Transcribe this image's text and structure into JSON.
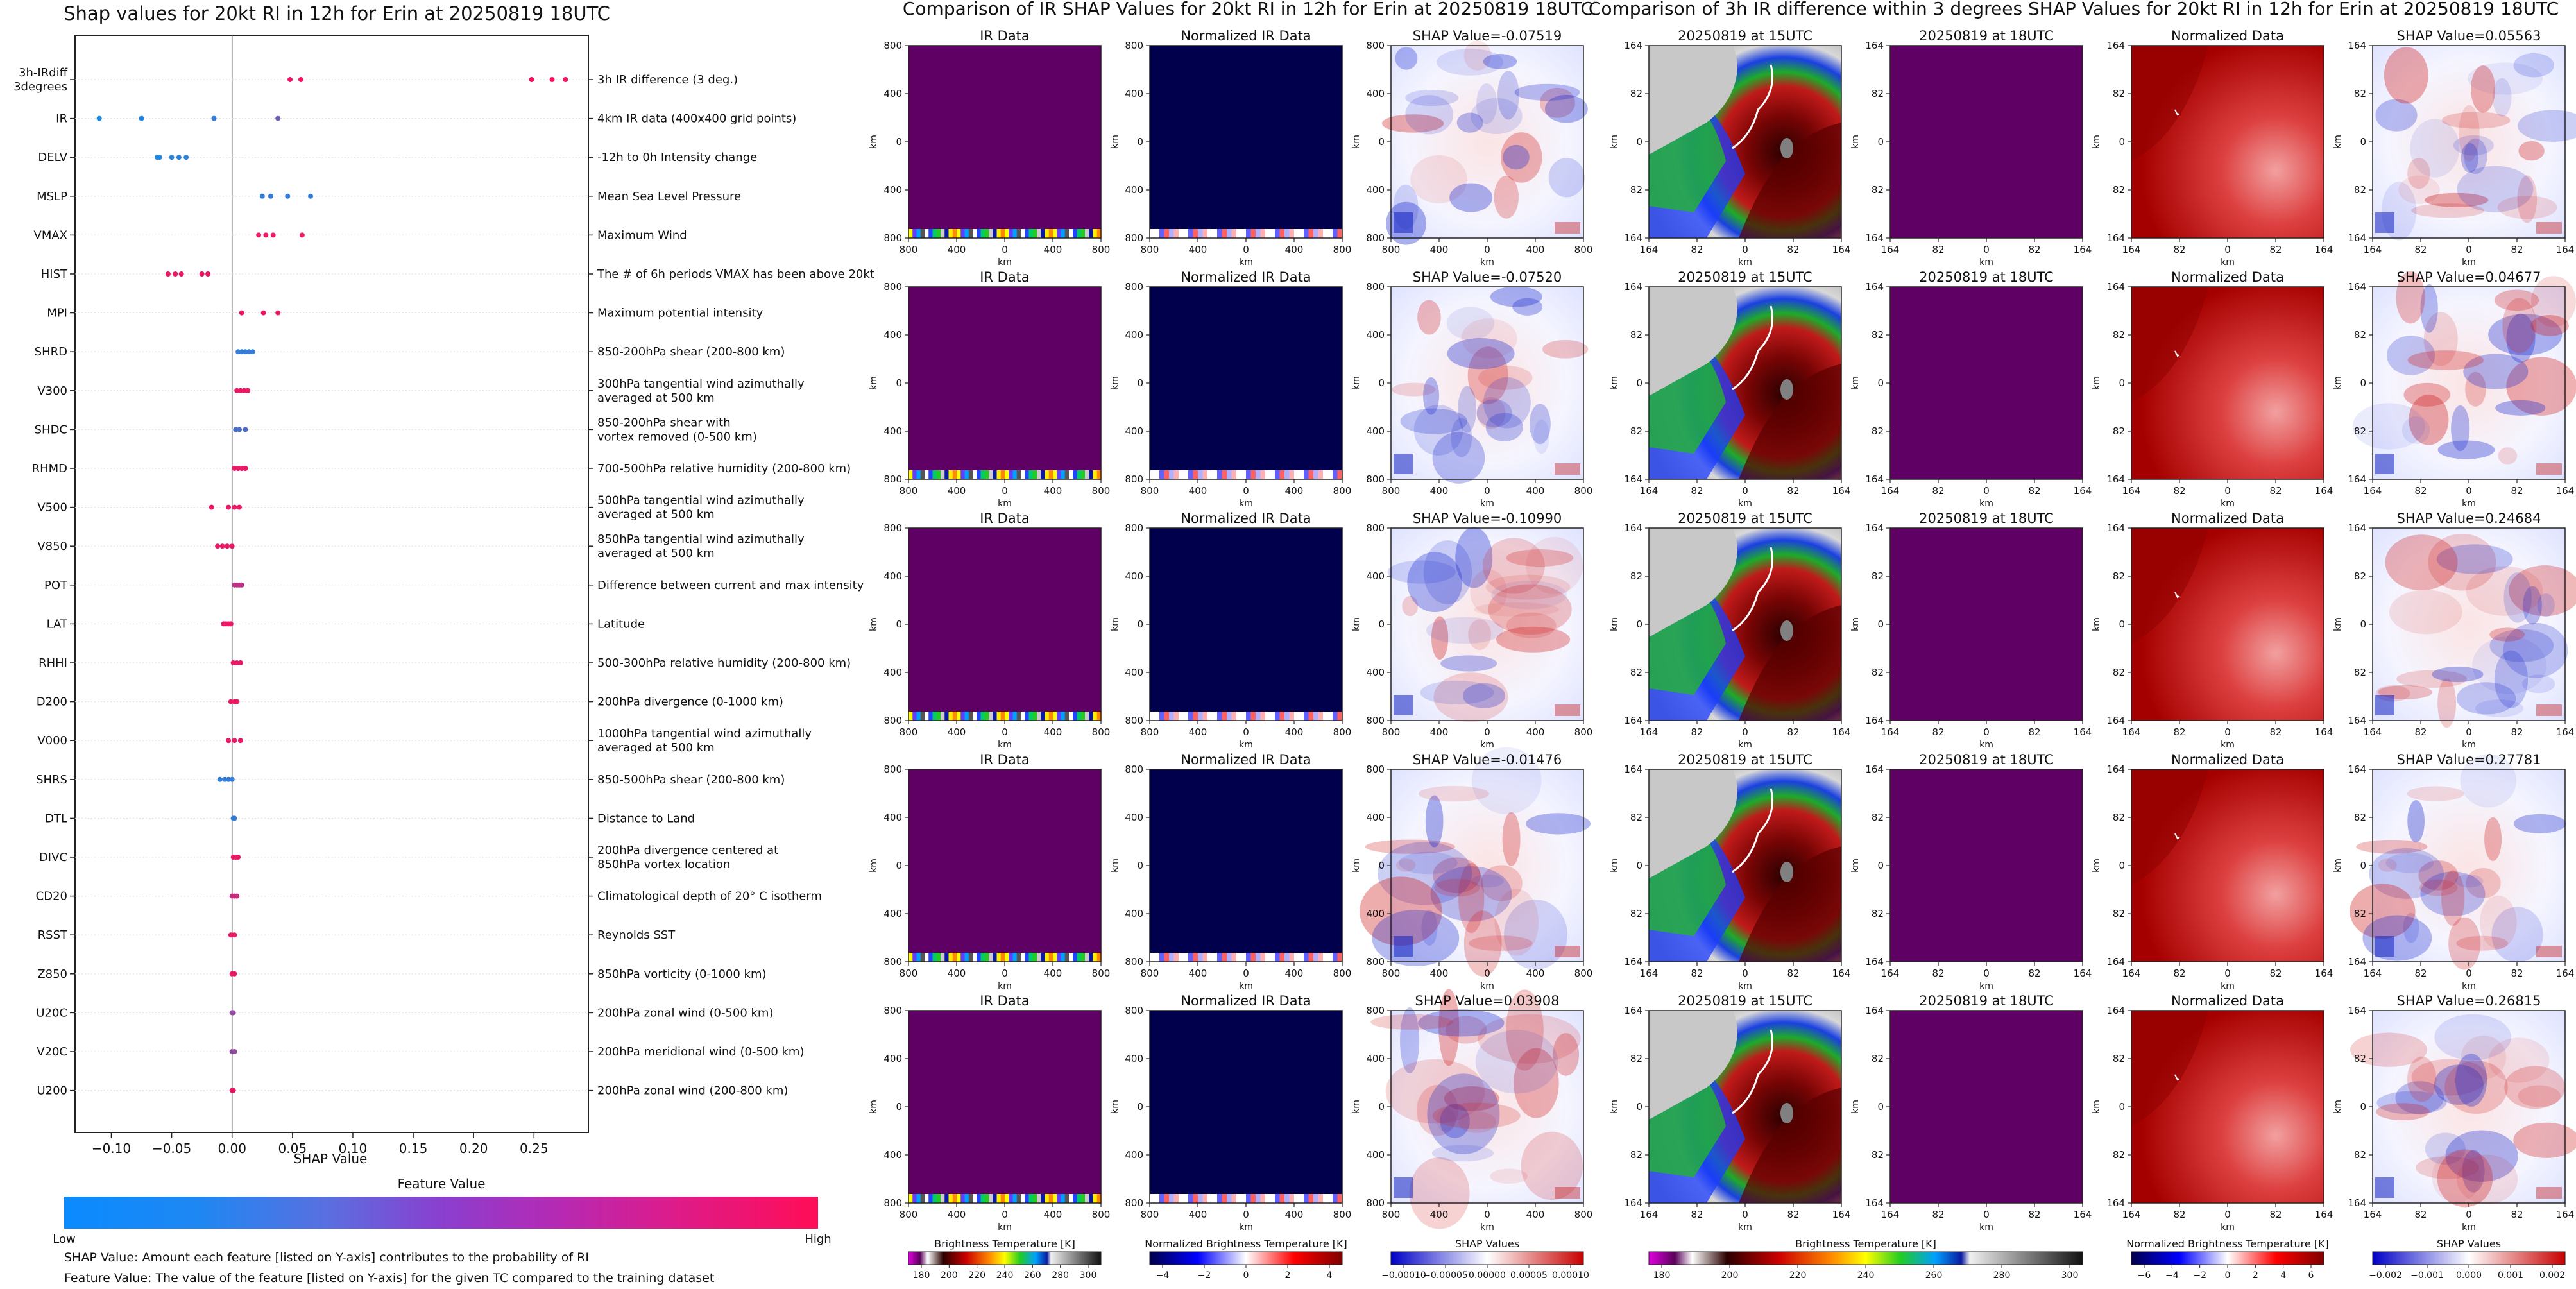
{
  "shap_panel": {
    "title": "Shap values for 20kt RI in 12h for Erin at 20250819 18UTC",
    "xlabel": "SHAP Value",
    "xticks": [
      "−0.10",
      "−0.05",
      "0.00",
      "0.05",
      "0.10",
      "0.15",
      "0.20",
      "0.25"
    ],
    "colorbar_title": "Feature Value",
    "colorbar_low": "Low",
    "colorbar_high": "High",
    "note1": "SHAP Value: Amount each feature [listed on Y-axis] contributes to the probability of RI",
    "note2": "Feature Value: The value of the feature [listed on Y-axis] for the given TC compared to the training dataset"
  },
  "ir_panel": {
    "title": "Comparison of IR SHAP Values for 20kt RI in 12h for Erin at 20250819 18UTC",
    "col_titles": [
      "IR Data",
      "Normalized IR Data"
    ],
    "shap_titles": [
      "SHAP Value=-0.07519",
      "SHAP Value=-0.07520",
      "SHAP Value=-0.10990",
      "SHAP Value=-0.01476",
      "SHAP Value=0.03908"
    ],
    "axis_ticks": [
      "800",
      "400",
      "0",
      "400",
      "800"
    ],
    "axis_label": "km",
    "cb_labels": [
      "Brightness Temperature [K]",
      "Normalized Brightness Temperature [K]",
      "SHAP Values"
    ],
    "cb1_ticks": [
      "180",
      "200",
      "220",
      "240",
      "260",
      "280",
      "300"
    ],
    "cb2_ticks": [
      "−4",
      "−2",
      "0",
      "2",
      "4"
    ],
    "cb3_ticks": [
      "−0.00010",
      "−0.00005",
      "0.00000",
      "0.00005",
      "0.00010"
    ]
  },
  "diff_panel": {
    "title": "Comparison of 3h IR difference within 3 degrees SHAP Values for 20kt RI in 12h for Erin at 20250819 18UTC",
    "col_titles": [
      "20250819 at 15UTC",
      "20250819 at 18UTC",
      "Normalized Data"
    ],
    "shap_titles": [
      "SHAP Value=0.05563",
      "SHAP Value=0.04677",
      "SHAP Value=0.24684",
      "SHAP Value=0.27781",
      "SHAP Value=0.26815"
    ],
    "axis_ticks": [
      "164",
      "82",
      "0",
      "82",
      "164"
    ],
    "axis_label": "km",
    "cb_labels": [
      "Brightness Temperature [K]",
      "Normalized Brightness Temperature [K]",
      "SHAP Values"
    ],
    "cb1_ticks": [
      "180",
      "200",
      "220",
      "240",
      "260",
      "280",
      "300"
    ],
    "cb2_ticks": [
      "−6",
      "−4",
      "−2",
      "0",
      "2",
      "4",
      "6"
    ],
    "cb3_ticks": [
      "−0.002",
      "−0.001",
      "0.000",
      "0.001",
      "0.002"
    ]
  },
  "colors": {
    "low": "#1e88e5",
    "high": "#ff0d57",
    "purple": "#5f0064",
    "navy": "#00004c"
  },
  "chart_data": [
    {
      "type": "scatter",
      "title": "Shap values for 20kt RI in 12h for Erin at 20250819 18UTC",
      "xlabel": "SHAP Value",
      "ylabel": "",
      "xlim": [
        -0.13,
        0.295
      ],
      "features": [
        {
          "name": "3h-IRdiff\n3degrees",
          "desc": "3h IR difference (3 deg.)",
          "points": [
            [
              0.048,
              0.9
            ],
            [
              0.057,
              0.95
            ],
            [
              0.248,
              0.95
            ],
            [
              0.265,
              0.95
            ],
            [
              0.276,
              0.95
            ]
          ]
        },
        {
          "name": "IR",
          "desc": "4km IR data (400x400 grid points)",
          "points": [
            [
              -0.11,
              0.0
            ],
            [
              -0.075,
              0.0
            ],
            [
              -0.015,
              0.1
            ],
            [
              0.038,
              0.35
            ]
          ]
        },
        {
          "name": "DELV",
          "desc": "-12h to 0h Intensity change",
          "points": [
            [
              -0.062,
              0.0
            ],
            [
              -0.06,
              0.0
            ],
            [
              -0.05,
              0.05
            ],
            [
              -0.044,
              0.05
            ],
            [
              -0.038,
              0.05
            ]
          ]
        },
        {
          "name": "MSLP",
          "desc": "Mean Sea Level Pressure",
          "points": [
            [
              0.025,
              0.1
            ],
            [
              0.032,
              0.1
            ],
            [
              0.046,
              0.1
            ],
            [
              0.065,
              0.1
            ]
          ]
        },
        {
          "name": "VMAX",
          "desc": "Maximum Wind",
          "points": [
            [
              0.022,
              0.9
            ],
            [
              0.028,
              0.9
            ],
            [
              0.034,
              0.9
            ],
            [
              0.058,
              0.9
            ]
          ]
        },
        {
          "name": "HIST",
          "desc": "The # of 6h periods VMAX has been above 20kt",
          "points": [
            [
              -0.053,
              0.9
            ],
            [
              -0.047,
              0.9
            ],
            [
              -0.042,
              0.9
            ],
            [
              -0.025,
              0.9
            ],
            [
              -0.02,
              0.9
            ]
          ]
        },
        {
          "name": "MPI",
          "desc": "Maximum potential intensity",
          "points": [
            [
              0.008,
              0.9
            ],
            [
              0.026,
              0.9
            ],
            [
              0.038,
              0.9
            ]
          ]
        },
        {
          "name": "SHRD",
          "desc": "850-200hPa shear (200-800 km)",
          "points": [
            [
              0.005,
              0.1
            ],
            [
              0.008,
              0.1
            ],
            [
              0.011,
              0.1
            ],
            [
              0.014,
              0.1
            ],
            [
              0.017,
              0.1
            ]
          ]
        },
        {
          "name": "V300",
          "desc": "300hPa tangential wind azimuthally\naveraged at 500 km",
          "points": [
            [
              0.004,
              0.9
            ],
            [
              0.007,
              0.9
            ],
            [
              0.01,
              0.9
            ],
            [
              0.013,
              0.9
            ]
          ]
        },
        {
          "name": "SHDC",
          "desc": "850-200hPa shear with\nvortex removed (0-500 km)",
          "points": [
            [
              0.003,
              0.2
            ],
            [
              0.006,
              0.2
            ],
            [
              0.011,
              0.2
            ]
          ]
        },
        {
          "name": "RHMD",
          "desc": "700-500hPa relative humidity (200-800 km)",
          "points": [
            [
              0.002,
              0.9
            ],
            [
              0.005,
              0.9
            ],
            [
              0.008,
              0.9
            ],
            [
              0.011,
              0.9
            ]
          ]
        },
        {
          "name": "V500",
          "desc": "500hPa tangential wind azimuthally\naveraged at 500 km",
          "points": [
            [
              -0.017,
              0.9
            ],
            [
              -0.003,
              0.9
            ],
            [
              0.002,
              0.9
            ],
            [
              0.006,
              0.9
            ]
          ]
        },
        {
          "name": "V850",
          "desc": "850hPa tangential wind azimuthally\naveraged at 500 km",
          "points": [
            [
              -0.012,
              0.9
            ],
            [
              -0.008,
              0.9
            ],
            [
              -0.004,
              0.9
            ],
            [
              0.0,
              0.9
            ]
          ]
        },
        {
          "name": "POT",
          "desc": "Difference between current and max intensity",
          "points": [
            [
              0.002,
              0.7
            ],
            [
              0.004,
              0.7
            ],
            [
              0.006,
              0.7
            ],
            [
              0.008,
              0.7
            ]
          ]
        },
        {
          "name": "LAT",
          "desc": "Latitude",
          "points": [
            [
              -0.007,
              0.9
            ],
            [
              -0.005,
              0.9
            ],
            [
              -0.003,
              0.9
            ],
            [
              -0.001,
              0.9
            ]
          ]
        },
        {
          "name": "RHHI",
          "desc": "500-300hPa relative humidity (200-800 km)",
          "points": [
            [
              0.001,
              0.9
            ],
            [
              0.004,
              0.9
            ],
            [
              0.007,
              0.9
            ]
          ]
        },
        {
          "name": "D200",
          "desc": "200hPa divergence (0-1000 km)",
          "points": [
            [
              -0.001,
              0.9
            ],
            [
              0.002,
              0.9
            ],
            [
              0.004,
              0.9
            ]
          ]
        },
        {
          "name": "V000",
          "desc": "1000hPa tangential wind azimuthally\naveraged at 500 km",
          "points": [
            [
              -0.003,
              0.9
            ],
            [
              0.002,
              0.9
            ],
            [
              0.007,
              0.9
            ]
          ]
        },
        {
          "name": "SHRS",
          "desc": "850-500hPa shear (200-800 km)",
          "points": [
            [
              -0.01,
              0.1
            ],
            [
              -0.006,
              0.1
            ],
            [
              -0.003,
              0.1
            ],
            [
              0.0,
              0.1
            ]
          ]
        },
        {
          "name": "DTL",
          "desc": "Distance to Land",
          "points": [
            [
              0.001,
              0.1
            ],
            [
              0.002,
              0.1
            ]
          ]
        },
        {
          "name": "DIVC",
          "desc": "200hPa divergence centered at\n850hPa vortex location",
          "points": [
            [
              0.001,
              0.9
            ],
            [
              0.003,
              0.9
            ],
            [
              0.005,
              0.9
            ]
          ]
        },
        {
          "name": "CD20",
          "desc": "Climatological depth of 20° C isotherm",
          "points": [
            [
              0.0,
              0.75
            ],
            [
              0.002,
              0.75
            ],
            [
              0.004,
              0.75
            ]
          ]
        },
        {
          "name": "RSST",
          "desc": "Reynolds SST",
          "points": [
            [
              -0.001,
              0.9
            ],
            [
              0.0,
              0.9
            ],
            [
              0.002,
              0.9
            ]
          ]
        },
        {
          "name": "Z850",
          "desc": "850hPa vorticity (0-1000 km)",
          "points": [
            [
              0.0,
              0.9
            ],
            [
              0.002,
              0.9
            ]
          ]
        },
        {
          "name": "U20C",
          "desc": "200hPa zonal wind (0-500 km)",
          "points": [
            [
              0.0,
              0.5
            ],
            [
              0.001,
              0.5
            ]
          ]
        },
        {
          "name": "V20C",
          "desc": "200hPa meridional wind (0-500 km)",
          "points": [
            [
              0.0,
              0.5
            ],
            [
              0.002,
              0.5
            ]
          ]
        },
        {
          "name": "U200",
          "desc": "200hPa zonal wind (200-800 km)",
          "points": [
            [
              0.0,
              0.9
            ],
            [
              0.001,
              0.9
            ]
          ]
        }
      ]
    }
  ]
}
